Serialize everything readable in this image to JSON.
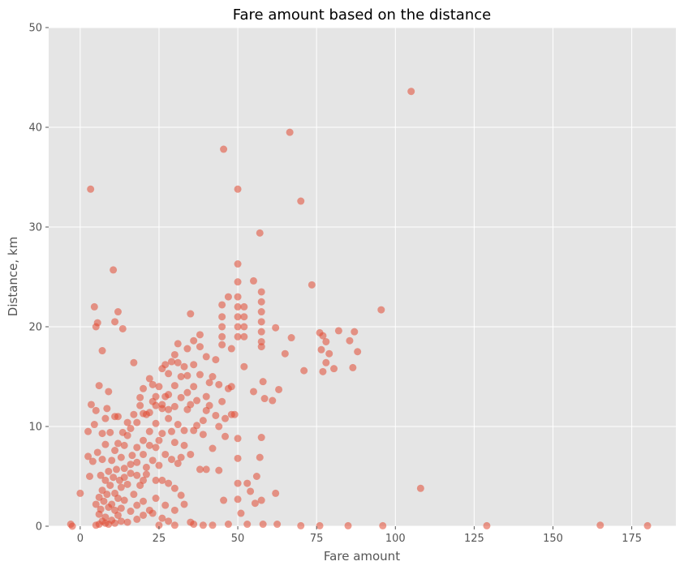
{
  "chart_data": {
    "type": "scatter",
    "title": "Fare amount based on the distance",
    "xlabel": "Fare amount",
    "ylabel": "Distance, km",
    "xlim": [
      -10,
      189
    ],
    "ylim": [
      0,
      50
    ],
    "xticks": [
      0,
      25,
      50,
      75,
      100,
      125,
      150,
      175
    ],
    "yticks": [
      0,
      10,
      20,
      30,
      40,
      50
    ],
    "grid": true,
    "point_color": "#E24A33",
    "point_opacity": 0.55,
    "background_color": "#E5E5E5",
    "grid_color": "#FFFFFF",
    "points": [
      [
        3.3,
        33.8
      ],
      [
        45.5,
        37.8
      ],
      [
        66.5,
        39.5
      ],
      [
        105,
        43.6
      ],
      [
        70,
        32.6
      ],
      [
        50,
        33.8
      ],
      [
        57,
        29.4
      ],
      [
        10.5,
        25.7
      ],
      [
        50,
        26.3
      ],
      [
        4.5,
        22
      ],
      [
        12,
        21.5
      ],
      [
        5.5,
        20.4
      ],
      [
        5,
        20
      ],
      [
        11,
        20.5
      ],
      [
        13.5,
        19.8
      ],
      [
        7,
        17.6
      ],
      [
        17,
        16.4
      ],
      [
        35,
        21.3
      ],
      [
        55,
        24.6
      ],
      [
        73.5,
        24.2
      ],
      [
        95.5,
        21.7
      ],
      [
        50,
        24.5
      ],
      [
        47,
        23
      ],
      [
        50,
        23
      ],
      [
        45,
        22.2
      ],
      [
        45,
        21
      ],
      [
        45,
        20
      ],
      [
        45,
        19
      ],
      [
        50,
        22
      ],
      [
        50,
        21
      ],
      [
        50,
        20
      ],
      [
        50,
        19
      ],
      [
        52,
        22
      ],
      [
        52,
        21
      ],
      [
        52,
        20
      ],
      [
        52,
        19
      ],
      [
        57.5,
        23.5
      ],
      [
        57.5,
        22.5
      ],
      [
        57.5,
        21.5
      ],
      [
        57.5,
        20.5
      ],
      [
        57.5,
        19.5
      ],
      [
        57.5,
        18.5
      ],
      [
        57.5,
        18
      ],
      [
        62,
        19.9
      ],
      [
        67,
        18.9
      ],
      [
        65,
        17.3
      ],
      [
        61,
        12.6
      ],
      [
        63,
        13.7
      ],
      [
        71,
        15.6
      ],
      [
        76,
        19.4
      ],
      [
        77,
        19.1
      ],
      [
        78,
        18.5
      ],
      [
        76.5,
        17.7
      ],
      [
        79,
        17.3
      ],
      [
        78,
        16.4
      ],
      [
        80.5,
        15.8
      ],
      [
        77,
        15.5
      ],
      [
        82,
        19.6
      ],
      [
        85.5,
        18.6
      ],
      [
        87,
        19.5
      ],
      [
        88,
        17.5
      ],
      [
        86.5,
        15.9
      ],
      [
        108,
        3.8
      ],
      [
        129,
        0.05
      ],
      [
        165,
        0.1
      ],
      [
        180,
        0.05
      ],
      [
        96,
        0.05
      ],
      [
        85,
        0.05
      ],
      [
        76,
        0.05
      ],
      [
        70,
        0.05
      ],
      [
        45.5,
        2.6
      ],
      [
        50,
        2.7
      ],
      [
        50,
        6.8
      ],
      [
        49,
        11.2
      ],
      [
        50,
        8.8
      ],
      [
        57.5,
        8.9
      ],
      [
        50,
        4.3
      ],
      [
        53,
        4.3
      ],
      [
        54,
        3.5
      ],
      [
        56,
        5
      ],
      [
        55.5,
        2.3
      ],
      [
        57.5,
        2.6
      ],
      [
        57,
        6.9
      ],
      [
        62,
        3.3
      ],
      [
        51,
        1.3
      ],
      [
        62.5,
        0.2
      ],
      [
        58,
        0.2
      ],
      [
        53,
        0.2
      ],
      [
        47,
        0.2
      ],
      [
        42,
        0.1
      ],
      [
        39,
        0.1
      ],
      [
        36,
        0.2
      ],
      [
        30,
        0.1
      ],
      [
        25,
        0.1
      ],
      [
        -3,
        0.2
      ],
      [
        -2.5,
        0
      ],
      [
        0,
        3.3
      ],
      [
        2.5,
        7
      ],
      [
        2.5,
        9.5
      ],
      [
        3.5,
        12.2
      ],
      [
        3,
        5
      ],
      [
        4,
        6.5
      ],
      [
        6,
        14.1
      ],
      [
        5,
        11.6
      ],
      [
        4.5,
        10.2
      ],
      [
        7,
        9.3
      ],
      [
        9,
        13.5
      ],
      [
        8.5,
        11.8
      ],
      [
        8,
        10.8
      ],
      [
        11,
        11
      ],
      [
        12,
        11
      ],
      [
        45,
        12.5
      ],
      [
        40,
        17
      ],
      [
        38,
        18
      ],
      [
        42,
        15
      ],
      [
        30,
        12
      ],
      [
        33,
        16
      ],
      [
        36,
        14
      ],
      [
        40,
        13
      ],
      [
        44,
        10
      ],
      [
        46,
        9
      ],
      [
        48,
        14
      ],
      [
        52,
        16
      ],
      [
        55,
        13.5
      ],
      [
        58,
        14.5
      ],
      [
        58.5,
        12.8
      ],
      [
        48,
        17.8
      ],
      [
        45,
        18.2
      ],
      [
        43,
        16.7
      ],
      [
        41,
        14.4
      ],
      [
        34,
        13.4
      ],
      [
        31,
        18.3
      ],
      [
        28,
        15.3
      ],
      [
        37,
        10.1
      ],
      [
        39,
        9.2
      ],
      [
        33,
        8.1
      ],
      [
        42,
        7.8
      ],
      [
        35,
        7.2
      ],
      [
        38,
        5.7
      ],
      [
        44,
        5.6
      ],
      [
        40,
        5.7
      ],
      [
        31,
        6.3
      ],
      [
        30,
        3.8
      ],
      [
        27,
        2.1
      ],
      [
        32,
        3.1
      ],
      [
        22,
        1.6
      ],
      [
        24,
        2.8
      ],
      [
        20,
        1.1
      ],
      [
        28,
        0.5
      ],
      [
        33,
        2.2
      ],
      [
        18,
        0.7
      ],
      [
        15,
        0.4
      ],
      [
        17,
        11.2
      ],
      [
        20,
        13.8
      ],
      [
        22,
        14.8
      ],
      [
        26,
        15.8
      ],
      [
        29,
        16.5
      ],
      [
        34,
        17.8
      ],
      [
        36,
        18.6
      ],
      [
        38,
        19.2
      ],
      [
        30,
        17.2
      ],
      [
        27,
        13
      ],
      [
        24,
        13
      ],
      [
        32,
        15
      ],
      [
        25,
        14
      ],
      [
        23,
        12.5
      ],
      [
        19,
        12.1
      ],
      [
        21,
        11.2
      ],
      [
        26,
        11.8
      ],
      [
        34,
        11.7
      ],
      [
        31,
        10.2
      ],
      [
        29,
        9.5
      ],
      [
        25,
        6.1
      ],
      [
        21,
        5.2
      ],
      [
        19,
        4.1
      ],
      [
        17,
        3.2
      ],
      [
        14,
        2.6
      ],
      [
        13,
        1.8
      ],
      [
        12,
        1.1
      ],
      [
        10,
        0.6
      ],
      [
        15,
        9.1
      ],
      [
        14,
        8.1
      ],
      [
        13,
        6.9
      ],
      [
        11.5,
        5.7
      ],
      [
        10.5,
        4.9
      ],
      [
        9.5,
        4.1
      ],
      [
        8.5,
        3.2
      ],
      [
        7.5,
        2.5
      ],
      [
        6.5,
        1.7
      ],
      [
        6,
        1.2
      ],
      [
        16,
        9.8
      ],
      [
        18,
        10.4
      ],
      [
        20,
        11.3
      ],
      [
        22,
        11.4
      ],
      [
        24,
        12.1
      ],
      [
        26,
        12.2
      ],
      [
        28,
        13.2
      ],
      [
        30,
        14.1
      ],
      [
        16.5,
        7.1
      ],
      [
        18,
        7.9
      ],
      [
        20,
        8.6
      ],
      [
        22,
        9.5
      ],
      [
        24,
        10.3
      ],
      [
        26,
        9.3
      ],
      [
        28,
        10.8
      ],
      [
        14,
        5.8
      ],
      [
        16,
        6.2
      ],
      [
        18,
        6.4
      ],
      [
        20,
        7.2
      ],
      [
        22,
        8.1
      ],
      [
        24,
        7.9
      ],
      [
        12.5,
        4.6
      ],
      [
        14,
        4.9
      ],
      [
        16,
        5.3
      ],
      [
        18,
        5.1
      ],
      [
        20,
        4.6
      ],
      [
        11,
        3.3
      ],
      [
        12,
        2.8
      ],
      [
        13,
        3.9
      ],
      [
        15,
        4.2
      ],
      [
        9,
        1.9
      ],
      [
        10,
        2.2
      ],
      [
        11,
        1.6
      ],
      [
        8,
        0.9
      ],
      [
        8,
        0.3
      ],
      [
        9,
        0.2
      ],
      [
        11,
        0.3
      ],
      [
        13,
        0.5
      ],
      [
        6,
        0.2
      ],
      [
        5,
        0.1
      ],
      [
        7,
        0.5
      ],
      [
        12,
        8.3
      ],
      [
        13.5,
        9.4
      ],
      [
        15,
        10.4
      ],
      [
        11,
        7.6
      ],
      [
        10,
        6.6
      ],
      [
        9,
        5.5
      ],
      [
        8,
        4.6
      ],
      [
        7,
        3.6
      ],
      [
        6,
        2.9
      ],
      [
        5,
        2.2
      ],
      [
        6.5,
        5.1
      ],
      [
        7,
        6.7
      ],
      [
        5.5,
        7.4
      ],
      [
        8,
        8.2
      ],
      [
        9.5,
        9.4
      ],
      [
        19,
        12.9
      ],
      [
        23,
        14.2
      ],
      [
        27,
        16.2
      ],
      [
        31,
        16.4
      ],
      [
        36,
        16.2
      ],
      [
        34,
        15.1
      ],
      [
        38,
        15.2
      ],
      [
        28,
        11.7
      ],
      [
        32,
        12.9
      ],
      [
        35,
        12.2
      ],
      [
        37,
        12.6
      ],
      [
        40,
        11.6
      ],
      [
        43,
        11.1
      ],
      [
        46,
        10.8
      ],
      [
        48,
        11.2
      ],
      [
        47,
        13.8
      ],
      [
        44,
        14.2
      ],
      [
        41,
        12.1
      ],
      [
        39,
        10.6
      ],
      [
        36,
        9.6
      ],
      [
        33,
        9.6
      ],
      [
        30,
        8.4
      ],
      [
        27,
        7.2
      ],
      [
        25,
        8.6
      ],
      [
        23,
        6.6
      ],
      [
        21,
        5.9
      ],
      [
        26,
        4.6
      ],
      [
        24,
        4.6
      ],
      [
        29,
        6.7
      ],
      [
        32,
        6.9
      ],
      [
        28,
        4.3
      ],
      [
        20,
        2.5
      ],
      [
        18,
        2.1
      ],
      [
        16,
        1.5
      ],
      [
        23,
        1.3
      ],
      [
        26,
        0.8
      ],
      [
        30,
        1.6
      ],
      [
        35,
        0.4
      ]
    ]
  }
}
